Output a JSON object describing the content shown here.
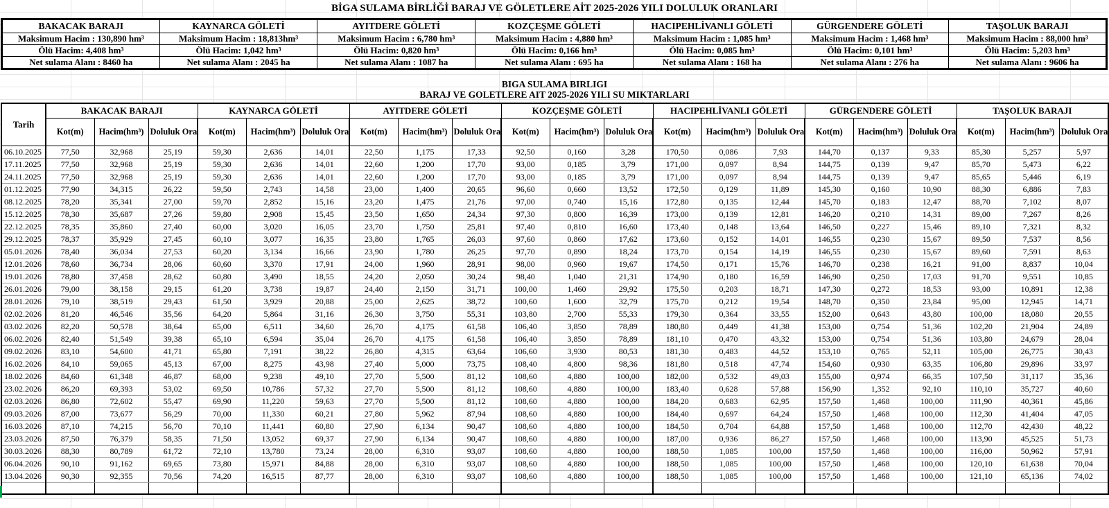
{
  "page": {
    "title1": "BİGA SULAMA BİRLİĞİ BARAJ VE GÖLETLERE AİT 2025-2026 YILI DOLULUK ORANLARI",
    "title2_line1": "BIGA SULAMA BIRLIGI",
    "title2_line2": "BARAJ VE GOLETLERE AIT 2025-2026 YILI SU MIKTARLARI"
  },
  "colors": {
    "border_heavy": "#000000",
    "gridline_faint": "#e6e6e6",
    "row_rule": "#9a9a9a",
    "selection_green": "#00a651"
  },
  "info_table": {
    "columns": [
      {
        "name": "BAKACAK BARAJI",
        "max": "Maksimum Hacim : 130,890 hm³",
        "dead": "Ölü Hacim: 4,408 hm³",
        "net": "Net sulama Alanı   : 8460 ha"
      },
      {
        "name": "KAYNARCA GÖLETİ",
        "max": "Maksimum Hacim : 18,813hm³",
        "dead": "Ölü Hacim: 1,042 hm³",
        "net": "Net sulama Alanı   : 2045 ha"
      },
      {
        "name": "AYITDERE GÖLETİ",
        "max": "Maksimum Hacim : 6,780 hm³",
        "dead": "Ölü Hacim: 0,820 hm³",
        "net": "Net sulama Alanı   : 1087 ha"
      },
      {
        "name": "KOZÇEŞME GÖLETİ",
        "max": "Maksimum Hacim : 4,880 hm³",
        "dead": "Ölü Hacim: 0,166 hm³",
        "net": "Net sulama Alanı   : 695 ha"
      },
      {
        "name": "HACIPEHLİVANLI GÖLETİ",
        "max": "Maksimum Hacim : 1,085 hm³",
        "dead": "Ölü Hacim: 0,085 hm³",
        "net": "Net sulama Alanı   : 168 ha"
      },
      {
        "name": "GÜRGENDERE GÖLETİ",
        "max": "Maksimum Hacim : 1,468 hm³",
        "dead": "Ölü Hacim:  0,101 hm³",
        "net": "Net sulama Alanı   :  276 ha"
      },
      {
        "name": "TAŞOLUK BARAJI",
        "max": "Maksimum Hacim : 88,000 hm³",
        "dead": "Ölü Hacim:  5,203 hm³",
        "net": "Net sulama Alanı   :  9606 ha"
      }
    ]
  },
  "main_table": {
    "date_header": "Tarih",
    "group_headers": [
      "BAKACAK BARAJI",
      "KAYNARCA GÖLETİ",
      "AYITDERE GÖLETİ",
      "KOZÇEŞME GÖLETİ",
      "HACIPEHLİVANLI GÖLETİ",
      "GÜRGENDERE GÖLETİ",
      "TAŞOLUK BARAJI"
    ],
    "sub_headers": [
      "Kot(m)",
      "Hacim(hm³)",
      "Doluluk Oranı (%)"
    ],
    "rows": [
      {
        "date": "06.10.2025",
        "cells": [
          "77,50",
          "32,968",
          "25,19",
          "59,30",
          "2,636",
          "14,01",
          "22,50",
          "1,175",
          "17,33",
          "92,50",
          "0,160",
          "3,28",
          "170,50",
          "0,086",
          "7,93",
          "144,70",
          "0,137",
          "9,33",
          "85,30",
          "5,257",
          "5,97"
        ]
      },
      {
        "date": "17.11.2025",
        "cells": [
          "77,50",
          "32,968",
          "25,19",
          "59,30",
          "2,636",
          "14,01",
          "22,60",
          "1,200",
          "17,70",
          "93,00",
          "0,185",
          "3,79",
          "171,00",
          "0,097",
          "8,94",
          "144,75",
          "0,139",
          "9,47",
          "85,70",
          "5,473",
          "6,22"
        ]
      },
      {
        "date": "24.11.2025",
        "cells": [
          "77,50",
          "32,968",
          "25,19",
          "59,30",
          "2,636",
          "14,01",
          "22,60",
          "1,200",
          "17,70",
          "93,00",
          "0,185",
          "3,79",
          "171,00",
          "0,097",
          "8,94",
          "144,75",
          "0,139",
          "9,47",
          "85,65",
          "5,446",
          "6,19"
        ]
      },
      {
        "date": "01.12.2025",
        "cells": [
          "77,90",
          "34,315",
          "26,22",
          "59,50",
          "2,743",
          "14,58",
          "23,00",
          "1,400",
          "20,65",
          "96,60",
          "0,660",
          "13,52",
          "172,50",
          "0,129",
          "11,89",
          "145,30",
          "0,160",
          "10,90",
          "88,30",
          "6,886",
          "7,83"
        ]
      },
      {
        "date": "08.12.2025",
        "cells": [
          "78,20",
          "35,341",
          "27,00",
          "59,70",
          "2,852",
          "15,16",
          "23,20",
          "1,475",
          "21,76",
          "97,00",
          "0,740",
          "15,16",
          "172,80",
          "0,135",
          "12,44",
          "145,70",
          "0,183",
          "12,47",
          "88,70",
          "7,102",
          "8,07"
        ]
      },
      {
        "date": "15.12.2025",
        "cells": [
          "78,30",
          "35,687",
          "27,26",
          "59,80",
          "2,908",
          "15,45",
          "23,50",
          "1,650",
          "24,34",
          "97,30",
          "0,800",
          "16,39",
          "173,00",
          "0,139",
          "12,81",
          "146,20",
          "0,210",
          "14,31",
          "89,00",
          "7,267",
          "8,26"
        ]
      },
      {
        "date": "22.12.2025",
        "cells": [
          "78,35",
          "35,860",
          "27,40",
          "60,00",
          "3,020",
          "16,05",
          "23,70",
          "1,750",
          "25,81",
          "97,40",
          "0,810",
          "16,60",
          "173,40",
          "0,148",
          "13,64",
          "146,50",
          "0,227",
          "15,46",
          "89,10",
          "7,321",
          "8,32"
        ]
      },
      {
        "date": "29.12.2025",
        "cells": [
          "78,37",
          "35,929",
          "27,45",
          "60,10",
          "3,077",
          "16,35",
          "23,80",
          "1,765",
          "26,03",
          "97,60",
          "0,860",
          "17,62",
          "173,60",
          "0,152",
          "14,01",
          "146,55",
          "0,230",
          "15,67",
          "89,50",
          "7,537",
          "8,56"
        ]
      },
      {
        "date": "05.01.2026",
        "cells": [
          "78,40",
          "36,034",
          "27,53",
          "60,20",
          "3,134",
          "16,66",
          "23,90",
          "1,780",
          "26,25",
          "97,70",
          "0,890",
          "18,24",
          "173,70",
          "0,154",
          "14,19",
          "146,55",
          "0,230",
          "15,67",
          "89,60",
          "7,591",
          "8,63"
        ]
      },
      {
        "date": "12.01.2026",
        "cells": [
          "78,60",
          "36,734",
          "28,06",
          "60,60",
          "3,370",
          "17,91",
          "24,00",
          "1,960",
          "28,91",
          "98,00",
          "0,960",
          "19,67",
          "174,50",
          "0,171",
          "15,76",
          "146,70",
          "0,238",
          "16,21",
          "91,00",
          "8,837",
          "10,04"
        ]
      },
      {
        "date": "19.01.2026",
        "cells": [
          "78,80",
          "37,458",
          "28,62",
          "60,80",
          "3,490",
          "18,55",
          "24,20",
          "2,050",
          "30,24",
          "98,40",
          "1,040",
          "21,31",
          "174,90",
          "0,180",
          "16,59",
          "146,90",
          "0,250",
          "17,03",
          "91,70",
          "9,551",
          "10,85"
        ]
      },
      {
        "date": "26.01.2026",
        "cells": [
          "79,00",
          "38,158",
          "29,15",
          "61,20",
          "3,738",
          "19,87",
          "24,40",
          "2,150",
          "31,71",
          "100,00",
          "1,460",
          "29,92",
          "175,50",
          "0,203",
          "18,71",
          "147,30",
          "0,272",
          "18,53",
          "93,00",
          "10,891",
          "12,38"
        ]
      },
      {
        "date": "28.01.2026",
        "cells": [
          "79,10",
          "38,519",
          "29,43",
          "61,50",
          "3,929",
          "20,88",
          "25,00",
          "2,625",
          "38,72",
          "100,60",
          "1,600",
          "32,79",
          "175,70",
          "0,212",
          "19,54",
          "148,70",
          "0,350",
          "23,84",
          "95,00",
          "12,945",
          "14,71"
        ]
      },
      {
        "date": "02.02.2026",
        "cells": [
          "81,20",
          "46,546",
          "35,56",
          "64,20",
          "5,864",
          "31,16",
          "26,30",
          "3,750",
          "55,31",
          "103,80",
          "2,700",
          "55,33",
          "179,30",
          "0,364",
          "33,55",
          "152,00",
          "0,643",
          "43,80",
          "100,00",
          "18,080",
          "20,55"
        ]
      },
      {
        "date": "03.02.2026",
        "cells": [
          "82,20",
          "50,578",
          "38,64",
          "65,00",
          "6,511",
          "34,60",
          "26,70",
          "4,175",
          "61,58",
          "106,40",
          "3,850",
          "78,89",
          "180,80",
          "0,449",
          "41,38",
          "153,00",
          "0,754",
          "51,36",
          "102,20",
          "21,904",
          "24,89"
        ]
      },
      {
        "date": "06.02.2026",
        "cells": [
          "82,40",
          "51,549",
          "39,38",
          "65,10",
          "6,594",
          "35,04",
          "26,70",
          "4,175",
          "61,58",
          "106,40",
          "3,850",
          "78,89",
          "181,10",
          "0,470",
          "43,32",
          "153,00",
          "0,754",
          "51,36",
          "103,80",
          "24,679",
          "28,04"
        ]
      },
      {
        "date": "09.02.2026",
        "cells": [
          "83,10",
          "54,600",
          "41,71",
          "65,80",
          "7,191",
          "38,22",
          "26,80",
          "4,315",
          "63,64",
          "106,60",
          "3,930",
          "80,53",
          "181,30",
          "0,483",
          "44,52",
          "153,10",
          "0,765",
          "52,11",
          "105,00",
          "26,775",
          "30,43"
        ]
      },
      {
        "date": "16.02.2026",
        "cells": [
          "84,10",
          "59,065",
          "45,13",
          "67,00",
          "8,275",
          "43,98",
          "27,40",
          "5,000",
          "73,75",
          "108,40",
          "4,800",
          "98,36",
          "181,80",
          "0,518",
          "47,74",
          "154,60",
          "0,930",
          "63,35",
          "106,80",
          "29,896",
          "33,97"
        ]
      },
      {
        "date": "18.02.2026",
        "cells": [
          "84,60",
          "61,348",
          "46,87",
          "68,00",
          "9,238",
          "49,10",
          "27,70",
          "5,500",
          "81,12",
          "108,60",
          "4,880",
          "100,00",
          "182,00",
          "0,532",
          "49,03",
          "155,00",
          "0,974",
          "66,35",
          "107,50",
          "31,117",
          "35,36"
        ]
      },
      {
        "date": "23.02.2026",
        "cells": [
          "86,20",
          "69,393",
          "53,02",
          "69,50",
          "10,786",
          "57,32",
          "27,70",
          "5,500",
          "81,12",
          "108,60",
          "4,880",
          "100,00",
          "183,40",
          "0,628",
          "57,88",
          "156,90",
          "1,352",
          "92,10",
          "110,10",
          "35,727",
          "40,60"
        ]
      },
      {
        "date": "02.03.2026",
        "cells": [
          "86,80",
          "72,602",
          "55,47",
          "69,90",
          "11,220",
          "59,63",
          "27,70",
          "5,500",
          "81,12",
          "108,60",
          "4,880",
          "100,00",
          "184,20",
          "0,683",
          "62,95",
          "157,50",
          "1,468",
          "100,00",
          "111,90",
          "40,361",
          "45,86"
        ]
      },
      {
        "date": "09.03.2026",
        "cells": [
          "87,00",
          "73,677",
          "56,29",
          "70,00",
          "11,330",
          "60,21",
          "27,80",
          "5,962",
          "87,94",
          "108,60",
          "4,880",
          "100,00",
          "184,40",
          "0,697",
          "64,24",
          "157,50",
          "1,468",
          "100,00",
          "112,30",
          "41,404",
          "47,05"
        ]
      },
      {
        "date": "16.03.2026",
        "cells": [
          "87,10",
          "74,215",
          "56,70",
          "70,10",
          "11,441",
          "60,80",
          "27,90",
          "6,134",
          "90,47",
          "108,60",
          "4,880",
          "100,00",
          "184,50",
          "0,704",
          "64,88",
          "157,50",
          "1,468",
          "100,00",
          "112,70",
          "42,430",
          "48,22"
        ]
      },
      {
        "date": "23.03.2026",
        "cells": [
          "87,50",
          "76,379",
          "58,35",
          "71,50",
          "13,052",
          "69,37",
          "27,90",
          "6,134",
          "90,47",
          "108,60",
          "4,880",
          "100,00",
          "187,00",
          "0,936",
          "86,27",
          "157,50",
          "1,468",
          "100,00",
          "113,90",
          "45,525",
          "51,73"
        ]
      },
      {
        "date": "30.03.2026",
        "cells": [
          "88,30",
          "80,789",
          "61,72",
          "72,10",
          "13,780",
          "73,24",
          "28,00",
          "6,310",
          "93,07",
          "108,60",
          "4,880",
          "100,00",
          "188,50",
          "1,085",
          "100,00",
          "157,50",
          "1,468",
          "100,00",
          "116,00",
          "50,962",
          "57,91"
        ]
      },
      {
        "date": "06.04.2026",
        "cells": [
          "90,10",
          "91,162",
          "69,65",
          "73,80",
          "15,971",
          "84,88",
          "28,00",
          "6,310",
          "93,07",
          "108,60",
          "4,880",
          "100,00",
          "188,50",
          "1,085",
          "100,00",
          "157,50",
          "1,468",
          "100,00",
          "120,10",
          "61,638",
          "70,04"
        ]
      },
      {
        "date": "13.04.2026",
        "cells": [
          "90,30",
          "92,355",
          "70,56",
          "74,20",
          "16,515",
          "87,77",
          "28,00",
          "6,310",
          "93,07",
          "108,60",
          "4,880",
          "100,00",
          "188,50",
          "1,085",
          "100,00",
          "157,50",
          "1,468",
          "100,00",
          "121,10",
          "65,136",
          "74,02"
        ]
      }
    ]
  }
}
